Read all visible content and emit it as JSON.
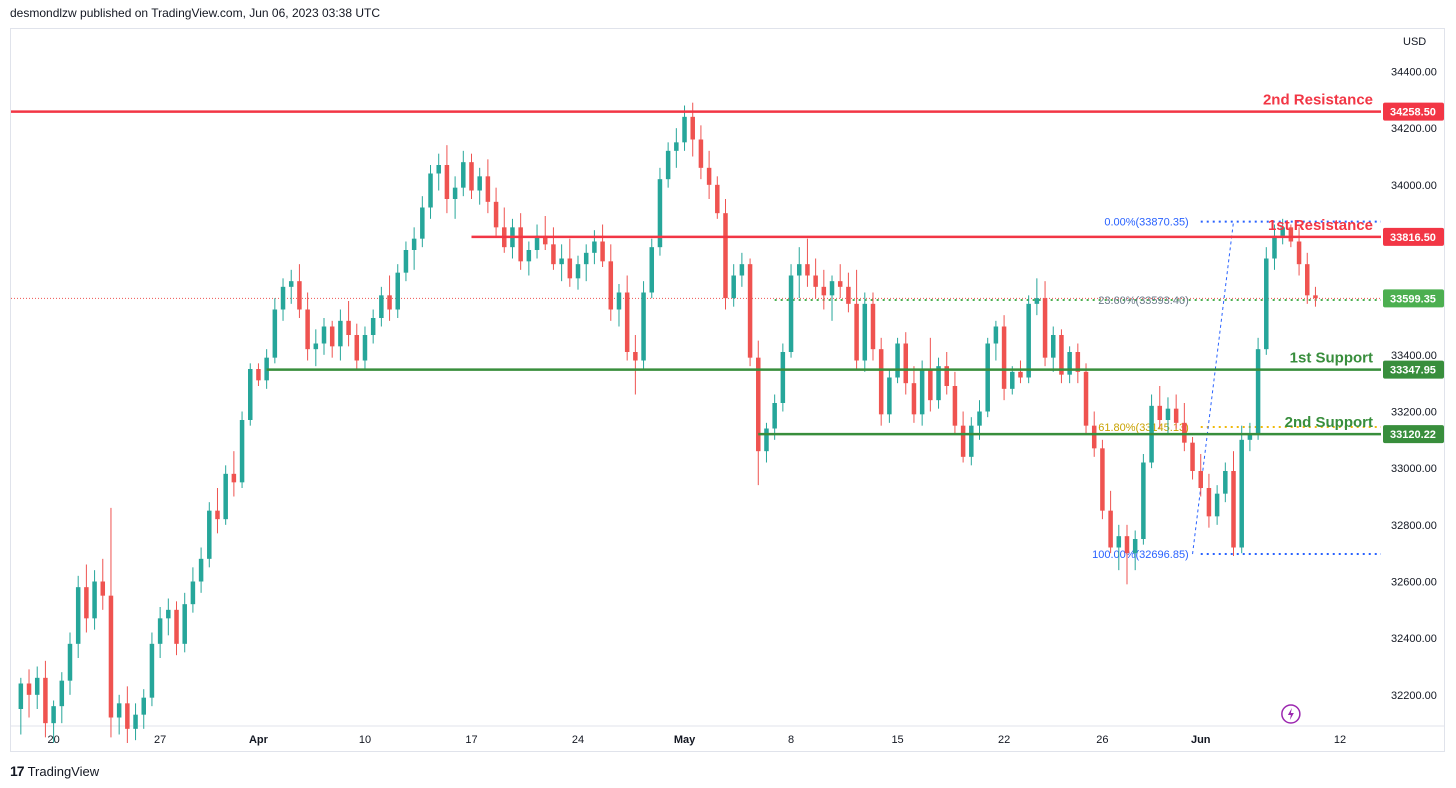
{
  "header": {
    "published_text": "desmondlzw published on TradingView.com, Jun 06, 2023 03:38 UTC"
  },
  "footer": {
    "logo_text": "17",
    "brand": "TradingView"
  },
  "colors": {
    "up": "#26a69a",
    "down": "#ef5350",
    "resistance": "#f23645",
    "support": "#388e3c",
    "fib": "#2962ff",
    "fib_gold": "#f0b90b",
    "current": "#4caf50"
  },
  "chart_data": {
    "type": "candlestick",
    "currency": "USD",
    "y_axis": {
      "ticks": [
        "34400.00",
        "34200.00",
        "34000.00",
        "33800.00",
        "33600.00",
        "33400.00",
        "33200.00",
        "33000.00",
        "32800.00",
        "32600.00",
        "32400.00",
        "32200.00"
      ],
      "tick_values": [
        34400,
        34200,
        34000,
        33800,
        33600,
        33400,
        33200,
        33000,
        32800,
        32600,
        32400,
        32200
      ],
      "range": [
        32090,
        34550
      ]
    },
    "x_axis": {
      "labels": [
        {
          "text": "20",
          "bar": 4,
          "bold": false
        },
        {
          "text": "27",
          "bar": 17,
          "bold": false
        },
        {
          "text": "Apr",
          "bar": 29,
          "bold": true
        },
        {
          "text": "10",
          "bar": 42,
          "bold": false
        },
        {
          "text": "17",
          "bar": 55,
          "bold": false
        },
        {
          "text": "24",
          "bar": 68,
          "bold": false
        },
        {
          "text": "May",
          "bar": 81,
          "bold": true
        },
        {
          "text": "8",
          "bar": 94,
          "bold": false
        },
        {
          "text": "15",
          "bar": 107,
          "bold": false
        },
        {
          "text": "22",
          "bar": 120,
          "bold": false
        },
        {
          "text": "26",
          "bar": 132,
          "bold": false
        },
        {
          "text": "Jun",
          "bar": 144,
          "bold": true
        },
        {
          "text": "12",
          "bar": 161,
          "bold": false
        }
      ],
      "bar_range": [
        -1.2,
        166
      ]
    },
    "levels": [
      {
        "name": "2nd Resistance",
        "price": "34258.50",
        "value": 34258.5,
        "kind": "resistance",
        "from_bar": -1.2
      },
      {
        "name": "1st Resistance",
        "price": "33816.50",
        "value": 33816.5,
        "kind": "resistance",
        "from_bar": 55
      },
      {
        "name": "1st Support",
        "price": "33347.95",
        "value": 33347.95,
        "kind": "support",
        "from_bar": 30
      },
      {
        "name": "2nd Support",
        "price": "33120.22",
        "value": 33120.22,
        "kind": "support",
        "from_bar": 90
      }
    ],
    "current_price": {
      "price": "33599.35",
      "value": 33599.35
    },
    "fib": [
      {
        "label": "0.00%(33870.35)",
        "value": 33870.35,
        "color": "fib"
      },
      {
        "label": "23.60%(33593.40)",
        "value": 33593.4,
        "color": "current"
      },
      {
        "label": "61.80%(33145.13)",
        "value": 33145.13,
        "color": "fib_gold"
      },
      {
        "label": "100.00%(32696.85)",
        "value": 32696.85,
        "color": "fib"
      }
    ],
    "candles": [
      [
        32150,
        32260,
        32060,
        32240
      ],
      [
        32240,
        32290,
        32120,
        32200
      ],
      [
        32200,
        32300,
        32150,
        32260
      ],
      [
        32260,
        32320,
        32050,
        32100
      ],
      [
        32100,
        32180,
        32030,
        32160
      ],
      [
        32160,
        32280,
        32100,
        32250
      ],
      [
        32250,
        32420,
        32200,
        32380
      ],
      [
        32380,
        32620,
        32330,
        32580
      ],
      [
        32580,
        32660,
        32420,
        32470
      ],
      [
        32470,
        32640,
        32430,
        32600
      ],
      [
        32600,
        32680,
        32500,
        32550
      ],
      [
        32550,
        32860,
        32050,
        32120
      ],
      [
        32120,
        32200,
        32060,
        32170
      ],
      [
        32170,
        32230,
        32030,
        32080
      ],
      [
        32080,
        32170,
        32040,
        32130
      ],
      [
        32130,
        32220,
        32080,
        32190
      ],
      [
        32190,
        32420,
        32160,
        32380
      ],
      [
        32380,
        32510,
        32330,
        32470
      ],
      [
        32470,
        32540,
        32410,
        32500
      ],
      [
        32500,
        32530,
        32340,
        32380
      ],
      [
        32380,
        32560,
        32350,
        32520
      ],
      [
        32520,
        32650,
        32490,
        32600
      ],
      [
        32600,
        32720,
        32560,
        32680
      ],
      [
        32680,
        32880,
        32650,
        32850
      ],
      [
        32850,
        32930,
        32770,
        32820
      ],
      [
        32820,
        33010,
        32800,
        32980
      ],
      [
        32980,
        33060,
        32900,
        32950
      ],
      [
        32950,
        33200,
        32930,
        33170
      ],
      [
        33170,
        33370,
        33150,
        33350
      ],
      [
        33350,
        33370,
        33290,
        33310
      ],
      [
        33310,
        33420,
        33280,
        33390
      ],
      [
        33390,
        33600,
        33370,
        33560
      ],
      [
        33560,
        33670,
        33520,
        33640
      ],
      [
        33640,
        33700,
        33580,
        33660
      ],
      [
        33660,
        33720,
        33530,
        33560
      ],
      [
        33560,
        33620,
        33380,
        33420
      ],
      [
        33420,
        33490,
        33360,
        33440
      ],
      [
        33440,
        33530,
        33400,
        33500
      ],
      [
        33500,
        33520,
        33390,
        33430
      ],
      [
        33430,
        33560,
        33380,
        33520
      ],
      [
        33520,
        33590,
        33430,
        33470
      ],
      [
        33470,
        33510,
        33350,
        33380
      ],
      [
        33380,
        33500,
        33350,
        33470
      ],
      [
        33470,
        33560,
        33440,
        33530
      ],
      [
        33530,
        33640,
        33500,
        33610
      ],
      [
        33610,
        33680,
        33520,
        33560
      ],
      [
        33560,
        33720,
        33530,
        33690
      ],
      [
        33690,
        33800,
        33660,
        33770
      ],
      [
        33770,
        33850,
        33700,
        33810
      ],
      [
        33810,
        33960,
        33780,
        33920
      ],
      [
        33920,
        34070,
        33880,
        34040
      ],
      [
        34040,
        34110,
        33980,
        34070
      ],
      [
        34070,
        34140,
        33900,
        33950
      ],
      [
        33950,
        34030,
        33880,
        33990
      ],
      [
        33990,
        34120,
        33960,
        34080
      ],
      [
        34080,
        34110,
        33950,
        33980
      ],
      [
        33980,
        34060,
        33930,
        34030
      ],
      [
        34030,
        34090,
        33900,
        33940
      ],
      [
        33940,
        33990,
        33820,
        33850
      ],
      [
        33850,
        33920,
        33760,
        33780
      ],
      [
        33780,
        33880,
        33740,
        33850
      ],
      [
        33850,
        33900,
        33700,
        33730
      ],
      [
        33730,
        33800,
        33680,
        33770
      ],
      [
        33770,
        33860,
        33740,
        33820
      ],
      [
        33820,
        33890,
        33770,
        33790
      ],
      [
        33790,
        33850,
        33700,
        33720
      ],
      [
        33720,
        33790,
        33660,
        33740
      ],
      [
        33740,
        33810,
        33640,
        33670
      ],
      [
        33670,
        33750,
        33630,
        33720
      ],
      [
        33720,
        33790,
        33660,
        33760
      ],
      [
        33760,
        33840,
        33720,
        33800
      ],
      [
        33800,
        33860,
        33710,
        33730
      ],
      [
        33730,
        33790,
        33520,
        33560
      ],
      [
        33560,
        33650,
        33500,
        33620
      ],
      [
        33620,
        33680,
        33380,
        33410
      ],
      [
        33410,
        33470,
        33260,
        33380
      ],
      [
        33380,
        33660,
        33350,
        33620
      ],
      [
        33620,
        33810,
        33600,
        33780
      ],
      [
        33780,
        34060,
        33750,
        34020
      ],
      [
        34020,
        34150,
        33990,
        34120
      ],
      [
        34120,
        34200,
        34060,
        34150
      ],
      [
        34150,
        34280,
        34120,
        34240
      ],
      [
        34240,
        34290,
        34100,
        34160
      ],
      [
        34160,
        34210,
        34020,
        34060
      ],
      [
        34060,
        34120,
        33950,
        34000
      ],
      [
        34000,
        34030,
        33880,
        33900
      ],
      [
        33900,
        33950,
        33560,
        33600
      ],
      [
        33600,
        33720,
        33570,
        33680
      ],
      [
        33680,
        33760,
        33640,
        33720
      ],
      [
        33720,
        33740,
        33360,
        33390
      ],
      [
        33390,
        33450,
        32940,
        33060
      ],
      [
        33060,
        33160,
        33020,
        33140
      ],
      [
        33140,
        33260,
        33100,
        33230
      ],
      [
        33230,
        33440,
        33200,
        33410
      ],
      [
        33410,
        33720,
        33390,
        33680
      ],
      [
        33680,
        33780,
        33600,
        33720
      ],
      [
        33720,
        33810,
        33640,
        33680
      ],
      [
        33680,
        33740,
        33600,
        33640
      ],
      [
        33640,
        33700,
        33560,
        33610
      ],
      [
        33610,
        33680,
        33520,
        33660
      ],
      [
        33660,
        33720,
        33600,
        33640
      ],
      [
        33640,
        33690,
        33550,
        33580
      ],
      [
        33580,
        33700,
        33350,
        33380
      ],
      [
        33380,
        33620,
        33340,
        33580
      ],
      [
        33580,
        33620,
        33380,
        33420
      ],
      [
        33420,
        33460,
        33150,
        33190
      ],
      [
        33190,
        33350,
        33160,
        33320
      ],
      [
        33320,
        33460,
        33300,
        33440
      ],
      [
        33440,
        33480,
        33260,
        33300
      ],
      [
        33300,
        33360,
        33160,
        33190
      ],
      [
        33190,
        33380,
        33150,
        33350
      ],
      [
        33350,
        33460,
        33200,
        33240
      ],
      [
        33240,
        33390,
        33210,
        33360
      ],
      [
        33360,
        33410,
        33260,
        33290
      ],
      [
        33290,
        33340,
        33120,
        33150
      ],
      [
        33150,
        33200,
        33020,
        33040
      ],
      [
        33040,
        33180,
        33010,
        33150
      ],
      [
        33150,
        33240,
        33100,
        33200
      ],
      [
        33200,
        33460,
        33180,
        33440
      ],
      [
        33440,
        33520,
        33380,
        33500
      ],
      [
        33500,
        33540,
        33240,
        33280
      ],
      [
        33280,
        33360,
        33260,
        33340
      ],
      [
        33340,
        33380,
        33300,
        33320
      ],
      [
        33320,
        33610,
        33300,
        33580
      ],
      [
        33580,
        33670,
        33540,
        33600
      ],
      [
        33600,
        33660,
        33360,
        33390
      ],
      [
        33390,
        33500,
        33340,
        33470
      ],
      [
        33470,
        33490,
        33300,
        33330
      ],
      [
        33330,
        33430,
        33300,
        33410
      ],
      [
        33410,
        33440,
        33300,
        33340
      ],
      [
        33340,
        33370,
        33120,
        33150
      ],
      [
        33150,
        33200,
        33040,
        33070
      ],
      [
        33070,
        33100,
        32820,
        32850
      ],
      [
        32850,
        32920,
        32700,
        32720
      ],
      [
        32720,
        32800,
        32640,
        32760
      ],
      [
        32760,
        32800,
        32590,
        32700
      ],
      [
        32700,
        32780,
        32640,
        32750
      ],
      [
        32750,
        33050,
        32730,
        33020
      ],
      [
        33020,
        33260,
        33000,
        33220
      ],
      [
        33220,
        33290,
        33140,
        33170
      ],
      [
        33170,
        33250,
        33120,
        33210
      ],
      [
        33210,
        33260,
        33140,
        33160
      ],
      [
        33160,
        33230,
        33060,
        33090
      ],
      [
        33090,
        33110,
        32960,
        32990
      ],
      [
        32990,
        33050,
        32900,
        32930
      ],
      [
        32930,
        32980,
        32790,
        32830
      ],
      [
        32830,
        32940,
        32800,
        32910
      ],
      [
        32910,
        33020,
        32880,
        32990
      ],
      [
        32990,
        33060,
        32690,
        32720
      ],
      [
        32720,
        33150,
        32700,
        33100
      ],
      [
        33100,
        33160,
        33060,
        33120
      ],
      [
        33120,
        33460,
        33100,
        33420
      ],
      [
        33420,
        33780,
        33400,
        33740
      ],
      [
        33740,
        33860,
        33700,
        33820
      ],
      [
        33820,
        33880,
        33790,
        33850
      ],
      [
        33850,
        33860,
        33780,
        33800
      ],
      [
        33800,
        33850,
        33680,
        33720
      ],
      [
        33720,
        33760,
        33580,
        33610
      ],
      [
        33610,
        33640,
        33570,
        33600
      ]
    ]
  }
}
